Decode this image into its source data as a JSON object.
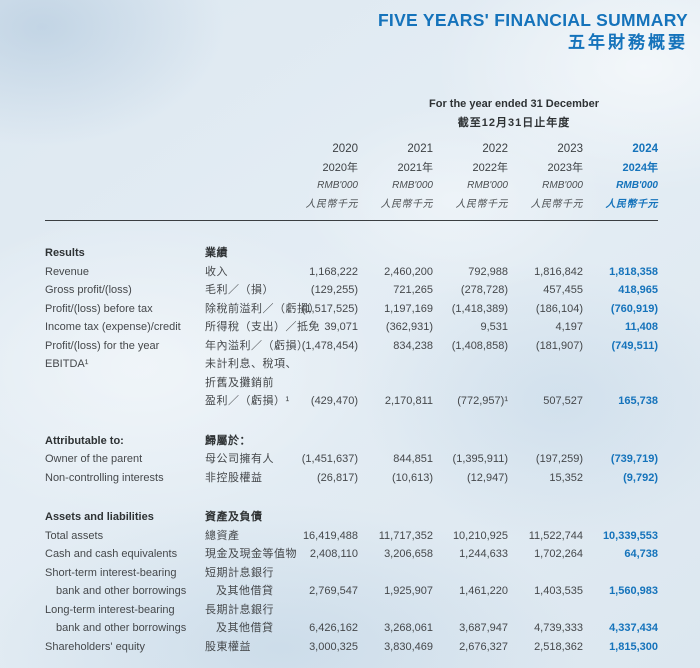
{
  "page": {
    "title_en": "FIVE YEARS' FINANCIAL SUMMARY",
    "title_zh": "五年財務概要"
  },
  "colors": {
    "accent_blue": "#1573bb",
    "body_text": "#45484b",
    "background": "#e0eaf2"
  },
  "table": {
    "period_header_en": "For the year ended 31 December",
    "period_header_zh": "截至12月31日止年度",
    "columns": [
      {
        "year": "2020",
        "year_zh": "2020年",
        "unit": "RMB'000",
        "unit_zh": "人民幣千元",
        "highlight": false
      },
      {
        "year": "2021",
        "year_zh": "2021年",
        "unit": "RMB'000",
        "unit_zh": "人民幣千元",
        "highlight": false
      },
      {
        "year": "2022",
        "year_zh": "2022年",
        "unit": "RMB'000",
        "unit_zh": "人民幣千元",
        "highlight": false
      },
      {
        "year": "2023",
        "year_zh": "2023年",
        "unit": "RMB'000",
        "unit_zh": "人民幣千元",
        "highlight": false
      },
      {
        "year": "2024",
        "year_zh": "2024年",
        "unit": "RMB'000",
        "unit_zh": "人民幣千元",
        "highlight": true
      }
    ],
    "rows": [
      {
        "type": "section",
        "en": "Results",
        "zh": "業績"
      },
      {
        "type": "data",
        "en": "Revenue",
        "zh": "收入",
        "values": [
          "1,168,222",
          "2,460,200",
          "792,988",
          "1,816,842",
          "1,818,358"
        ]
      },
      {
        "type": "data",
        "en": "Gross profit/(loss)",
        "zh": "毛利／（損）",
        "values": [
          "(129,255)",
          "721,265",
          "(278,728)",
          "457,455",
          "418,965"
        ]
      },
      {
        "type": "data",
        "en": "Profit/(loss) before tax",
        "zh": "除稅前溢利／（虧損）",
        "values": [
          "(1,517,525)",
          "1,197,169",
          "(1,418,389)",
          "(186,104)",
          "(760,919)"
        ]
      },
      {
        "type": "data",
        "en": "Income tax (expense)/credit",
        "zh": "所得稅（支出）／抵免",
        "values": [
          "39,071",
          "(362,931)",
          "9,531",
          "4,197",
          "11,408"
        ]
      },
      {
        "type": "data",
        "en": "Profit/(loss) for the year",
        "zh": "年內溢利／（虧損）",
        "values": [
          "(1,478,454)",
          "834,238",
          "(1,408,858)",
          "(181,907)",
          "(749,511)"
        ]
      },
      {
        "type": "data",
        "en": "EBITDA¹",
        "zh": "未計利息、稅項、",
        "values": null
      },
      {
        "type": "data",
        "en": "",
        "zh": "折舊及攤銷前",
        "values": null
      },
      {
        "type": "data",
        "en": "",
        "zh": "盈利／（虧損）¹",
        "values": [
          "(429,470)",
          "2,170,811",
          "(772,957)¹",
          "507,527",
          "165,738"
        ]
      },
      {
        "type": "spacer"
      },
      {
        "type": "section",
        "en": "Attributable to:",
        "zh": "歸屬於："
      },
      {
        "type": "data",
        "en": "Owner of the parent",
        "zh": "母公司擁有人",
        "values": [
          "(1,451,637)",
          "844,851",
          "(1,395,911)",
          "(197,259)",
          "(739,719)"
        ]
      },
      {
        "type": "data",
        "en": "Non-controlling interests",
        "zh": "非控股權益",
        "values": [
          "(26,817)",
          "(10,613)",
          "(12,947)",
          "15,352",
          "(9,792)"
        ]
      },
      {
        "type": "spacer"
      },
      {
        "type": "section",
        "en": "Assets and liabilities",
        "zh": "資產及負債"
      },
      {
        "type": "data",
        "en": "Total assets",
        "zh": "總資產",
        "values": [
          "16,419,488",
          "11,717,352",
          "10,210,925",
          "11,522,744",
          "10,339,553"
        ]
      },
      {
        "type": "data",
        "en": "Cash and cash equivalents",
        "zh": "現金及現金等值物",
        "values": [
          "2,408,110",
          "3,206,658",
          "1,244,633",
          "1,702,264",
          "64,738"
        ]
      },
      {
        "type": "data",
        "en": "Short-term interest-bearing",
        "zh": "短期計息銀行",
        "values": null
      },
      {
        "type": "data",
        "en": "bank and other borrowings",
        "en_indent": true,
        "zh": "及其他借貸",
        "zh_indent": true,
        "values": [
          "2,769,547",
          "1,925,907",
          "1,461,220",
          "1,403,535",
          "1,560,983"
        ]
      },
      {
        "type": "data",
        "en": "Long-term interest-bearing",
        "zh": "長期計息銀行",
        "values": null
      },
      {
        "type": "data",
        "en": "bank and other borrowings",
        "en_indent": true,
        "zh": "及其他借貸",
        "zh_indent": true,
        "values": [
          "6,426,162",
          "3,268,061",
          "3,687,947",
          "4,739,333",
          "4,337,434"
        ]
      },
      {
        "type": "data",
        "en": "Shareholders' equity",
        "zh": "股東權益",
        "values": [
          "3,000,325",
          "3,830,469",
          "2,676,327",
          "2,518,362",
          "1,815,300"
        ]
      }
    ]
  }
}
